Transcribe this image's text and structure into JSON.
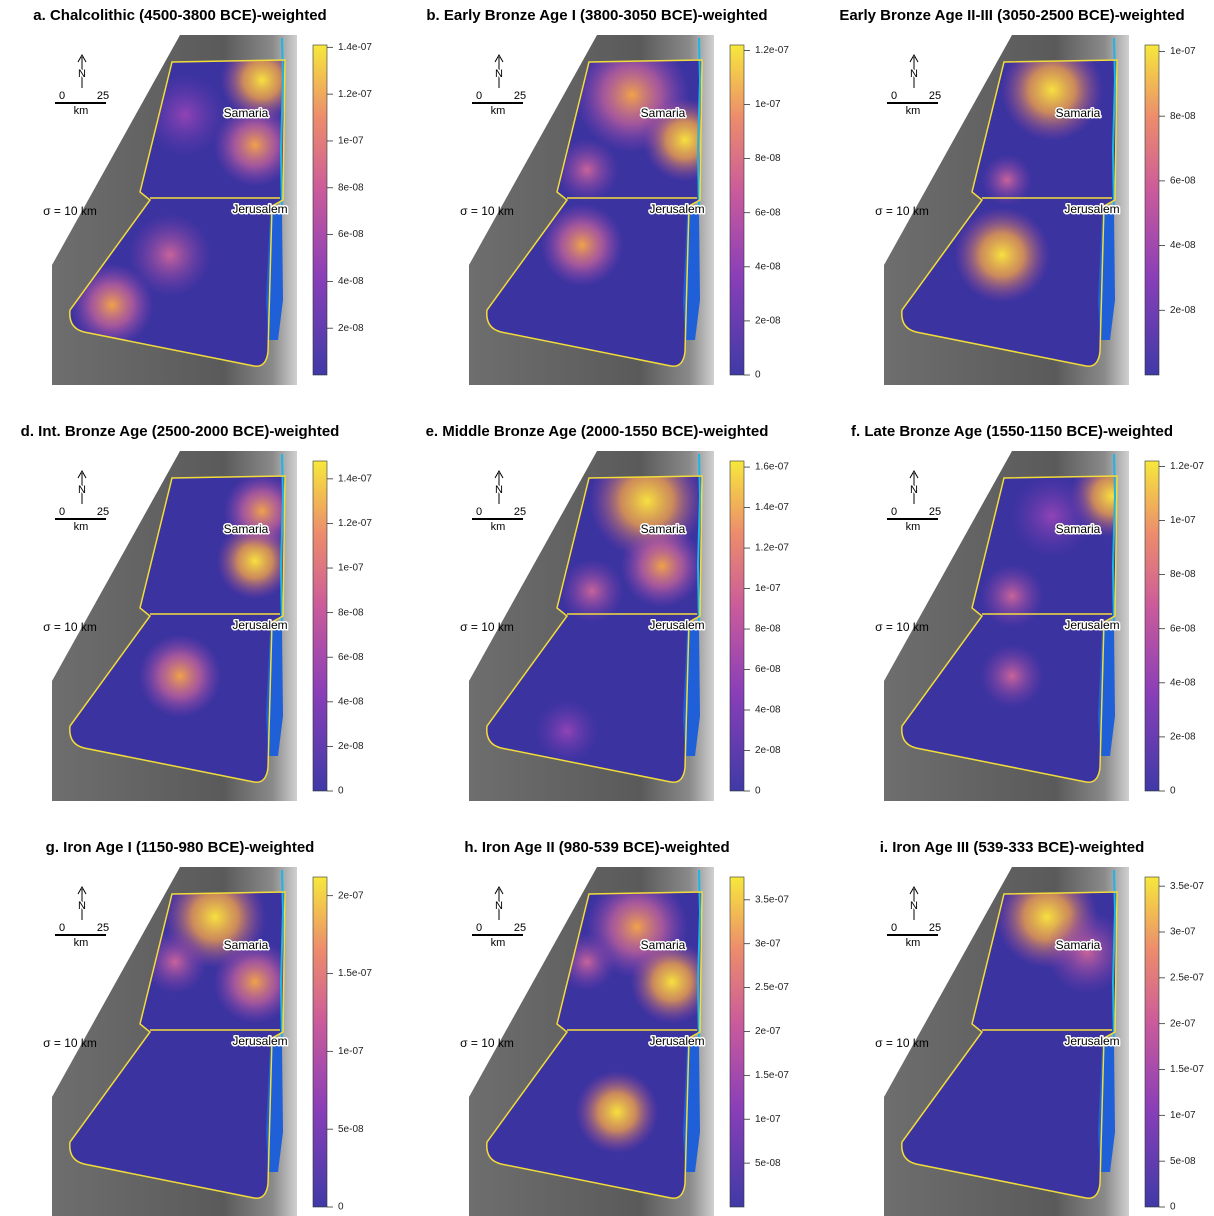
{
  "panels": [
    {
      "title": "a. Chalcolithic (4500-3800 BCE)-weighted",
      "north": "N",
      "scale_start": "0",
      "scale_end": "25",
      "scale_unit": "km",
      "sigma": "σ = 10 km",
      "samaria": "Samaria",
      "jerusalem": "Jerusalem",
      "colorbar": {
        "lim": [
          0,
          1.41e-07
        ],
        "ticks": [
          {
            "value": 2e-08,
            "label": "2e-08"
          },
          {
            "value": 4e-08,
            "label": "4e-08"
          },
          {
            "value": 6e-08,
            "label": "6e-08"
          },
          {
            "value": 8e-08,
            "label": "8e-08"
          },
          {
            "value": 1e-07,
            "label": "1e-07"
          },
          {
            "value": 1.2e-07,
            "label": "1.2e-07"
          },
          {
            "value": 1.4e-07,
            "label": "1.4e-07"
          }
        ]
      }
    },
    {
      "title": "b. Early Bronze Age I (3800-3050 BCE)-weighted",
      "north": "N",
      "scale_start": "0",
      "scale_end": "25",
      "scale_unit": "km",
      "sigma": "σ = 10 km",
      "samaria": "Samaria",
      "jerusalem": "Jerusalem",
      "colorbar": {
        "lim": [
          0,
          1.22e-07
        ],
        "ticks": [
          0,
          {
            "value": 2e-08,
            "label": "2e-08"
          },
          {
            "value": 4e-08,
            "label": "4e-08"
          },
          {
            "value": 6e-08,
            "label": "6e-08"
          },
          {
            "value": 8e-08,
            "label": "8e-08"
          },
          {
            "value": 1e-07,
            "label": "1e-07"
          },
          {
            "value": 1.2e-07,
            "label": "1.2e-07"
          }
        ]
      }
    },
    {
      "title": "Early Bronze Age II-III (3050-2500 BCE)-weighted",
      "north": "N",
      "scale_start": "0",
      "scale_end": "25",
      "scale_unit": "km",
      "sigma": "σ = 10 km",
      "samaria": "Samaria",
      "jerusalem": "Jerusalem",
      "colorbar": {
        "lim": [
          0,
          1.02e-07
        ],
        "ticks": [
          {
            "value": 2e-08,
            "label": "2e-08"
          },
          {
            "value": 4e-08,
            "label": "4e-08"
          },
          {
            "value": 6e-08,
            "label": "6e-08"
          },
          {
            "value": 8e-08,
            "label": "8e-08"
          },
          {
            "value": 1e-07,
            "label": "1e-07"
          }
        ]
      }
    },
    {
      "title": "d. Int. Bronze Age (2500-2000 BCE)-weighted",
      "north": "N",
      "scale_start": "0",
      "scale_end": "25",
      "scale_unit": "km",
      "sigma": "σ = 10 km",
      "samaria": "Samaria",
      "jerusalem": "Jerusalem",
      "colorbar": {
        "lim": [
          0,
          1.48e-07
        ],
        "ticks": [
          0,
          {
            "value": 2e-08,
            "label": "2e-08"
          },
          {
            "value": 4e-08,
            "label": "4e-08"
          },
          {
            "value": 6e-08,
            "label": "6e-08"
          },
          {
            "value": 8e-08,
            "label": "8e-08"
          },
          {
            "value": 1e-07,
            "label": "1e-07"
          },
          {
            "value": 1.2e-07,
            "label": "1.2e-07"
          },
          {
            "value": 1.4e-07,
            "label": "1.4e-07"
          }
        ]
      }
    },
    {
      "title": "e. Middle Bronze Age (2000-1550 BCE)-weighted",
      "north": "N",
      "scale_start": "0",
      "scale_end": "25",
      "scale_unit": "km",
      "sigma": "σ = 10 km",
      "samaria": "Samaria",
      "jerusalem": "Jerusalem",
      "colorbar": {
        "lim": [
          0,
          1.63e-07
        ],
        "ticks": [
          0,
          {
            "value": 2e-08,
            "label": "2e-08"
          },
          {
            "value": 4e-08,
            "label": "4e-08"
          },
          {
            "value": 6e-08,
            "label": "6e-08"
          },
          {
            "value": 8e-08,
            "label": "8e-08"
          },
          {
            "value": 1e-07,
            "label": "1e-07"
          },
          {
            "value": 1.2e-07,
            "label": "1.2e-07"
          },
          {
            "value": 1.4e-07,
            "label": "1.4e-07"
          },
          {
            "value": 1.6e-07,
            "label": "1.6e-07"
          }
        ]
      }
    },
    {
      "title": "f. Late Bronze Age (1550-1150 BCE)-weighted",
      "north": "N",
      "scale_start": "0",
      "scale_end": "25",
      "scale_unit": "km",
      "sigma": "σ = 10 km",
      "samaria": "Samaria",
      "jerusalem": "Jerusalem",
      "colorbar": {
        "lim": [
          0,
          1.22e-07
        ],
        "ticks": [
          0,
          {
            "value": 2e-08,
            "label": "2e-08"
          },
          {
            "value": 4e-08,
            "label": "4e-08"
          },
          {
            "value": 6e-08,
            "label": "6e-08"
          },
          {
            "value": 8e-08,
            "label": "8e-08"
          },
          {
            "value": 1e-07,
            "label": "1e-07"
          },
          {
            "value": 1.2e-07,
            "label": "1.2e-07"
          }
        ]
      }
    },
    {
      "title": "g. Iron Age I (1150-980 BCE)-weighted",
      "north": "N",
      "scale_start": "0",
      "scale_end": "25",
      "scale_unit": "km",
      "sigma": "σ = 10 km",
      "samaria": "Samaria",
      "jerusalem": "Jerusalem",
      "colorbar": {
        "lim": [
          0,
          2.12e-07
        ],
        "ticks": [
          0,
          {
            "value": 5e-08,
            "label": "5e-08"
          },
          {
            "value": 1e-07,
            "label": "1e-07"
          },
          {
            "value": 1.5e-07,
            "label": "1.5e-07"
          },
          {
            "value": 2e-07,
            "label": "2e-07"
          }
        ]
      }
    },
    {
      "title": "h. Iron Age II (980-539 BCE)-weighted",
      "north": "N",
      "scale_start": "0",
      "scale_end": "25",
      "scale_unit": "km",
      "sigma": "σ = 10 km",
      "samaria": "Samaria",
      "jerusalem": "Jerusalem",
      "colorbar": {
        "lim": [
          0,
          3.76e-07
        ],
        "ticks": [
          {
            "value": 5e-08,
            "label": "5e-08"
          },
          {
            "value": 1e-07,
            "label": "1e-07"
          },
          {
            "value": 1.5e-07,
            "label": "1.5e-07"
          },
          {
            "value": 2e-07,
            "label": "2e-07"
          },
          {
            "value": 2.5e-07,
            "label": "2.5e-07"
          },
          {
            "value": 3e-07,
            "label": "3e-07"
          },
          {
            "value": 3.5e-07,
            "label": "3.5e-07"
          }
        ]
      }
    },
    {
      "title": "i. Iron Age III (539-333 BCE)-weighted",
      "north": "N",
      "scale_start": "0",
      "scale_end": "25",
      "scale_unit": "km",
      "sigma": "σ = 10 km",
      "samaria": "Samaria",
      "jerusalem": "Jerusalem",
      "colorbar": {
        "lim": [
          0,
          3.6e-07
        ],
        "ticks": [
          0,
          {
            "value": 5e-08,
            "label": "5e-08"
          },
          {
            "value": 1e-07,
            "label": "1e-07"
          },
          {
            "value": 1.5e-07,
            "label": "1.5e-07"
          },
          {
            "value": 2e-07,
            "label": "2e-07"
          },
          {
            "value": 2.5e-07,
            "label": "2.5e-07"
          },
          {
            "value": 3e-07,
            "label": "3e-07"
          },
          {
            "value": 3.5e-07,
            "label": "3.5e-07"
          }
        ]
      }
    }
  ]
}
